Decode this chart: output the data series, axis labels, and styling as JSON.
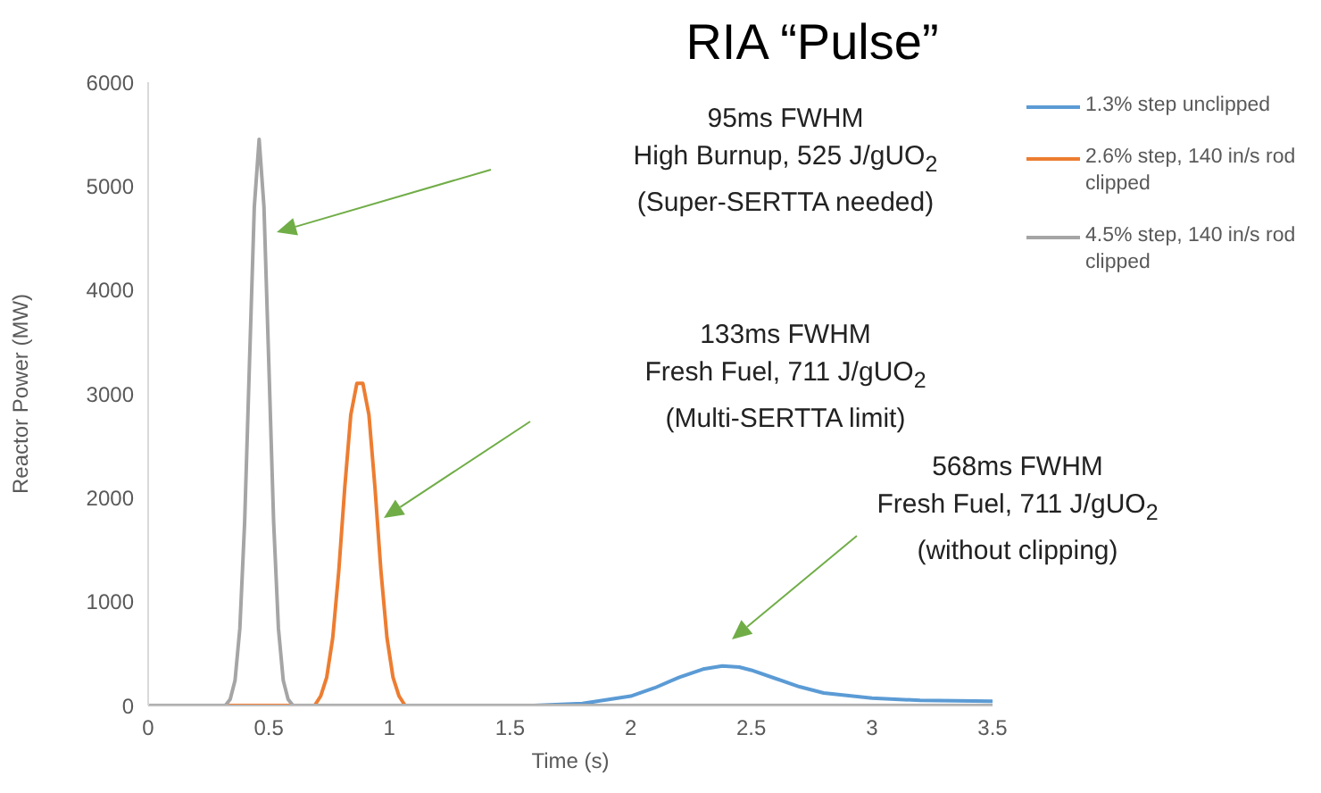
{
  "chart_data": {
    "type": "line",
    "title": "RIA “Pulse”",
    "xlabel": "Time (s)",
    "ylabel": "Reactor Power (MW)",
    "xlim": [
      0,
      3.5
    ],
    "xticks": [
      0,
      0.5,
      1,
      1.5,
      2,
      2.5,
      3,
      3.5
    ],
    "ylim": [
      0,
      6000
    ],
    "yticks": [
      0,
      1000,
      2000,
      3000,
      4000,
      5000,
      6000
    ],
    "grid": false,
    "legend": "top right",
    "marker": "none",
    "line_style": "solid",
    "series": [
      {
        "name": "1.3% step unclipped",
        "color": "#5b9bd5",
        "x": [
          0,
          1.6,
          1.8,
          2.0,
          2.1,
          2.2,
          2.3,
          2.38,
          2.45,
          2.5,
          2.6,
          2.7,
          2.8,
          3.0,
          3.2,
          3.5
        ],
        "values": [
          0,
          0,
          20,
          90,
          170,
          270,
          350,
          380,
          370,
          340,
          260,
          180,
          120,
          70,
          50,
          40
        ]
      },
      {
        "name": "2.6% step, 140 in/s rod clipped",
        "color": "#ed7d31",
        "x": [
          0,
          0.6,
          0.69,
          0.715,
          0.74,
          0.765,
          0.79,
          0.815,
          0.84,
          0.865,
          0.89,
          0.915,
          0.94,
          0.965,
          0.99,
          1.015,
          1.04,
          1.065,
          1.09,
          3.5
        ],
        "values": [
          0,
          0,
          0,
          90,
          270,
          650,
          1290,
          2100,
          2800,
          3100,
          3100,
          2800,
          2100,
          1290,
          650,
          270,
          90,
          0,
          0,
          0
        ]
      },
      {
        "name": "4.5% step, 140 in/s rod clipped",
        "color": "#a5a5a5",
        "x": [
          0,
          0.3,
          0.32,
          0.34,
          0.36,
          0.38,
          0.4,
          0.42,
          0.44,
          0.46,
          0.48,
          0.5,
          0.52,
          0.54,
          0.56,
          0.58,
          0.6,
          0.62,
          3.5
        ],
        "values": [
          0,
          0,
          0,
          60,
          240,
          740,
          1770,
          3300,
          4800,
          5450,
          4800,
          3300,
          1770,
          740,
          240,
          60,
          0,
          0,
          0
        ]
      }
    ],
    "annotations": [
      "95ms FWHM\nHigh Burnup, 525 J/gUO$_{2}$\n(Super-SERTTA needed)",
      "133ms FWHM\nFresh Fuel, 711 J/gUO$_{2}$\n(Multi-SERTTA limit)",
      "568ms FWHM\nFresh Fuel, 711 J/gUO$_{2}$\n(without clipping)"
    ]
  }
}
